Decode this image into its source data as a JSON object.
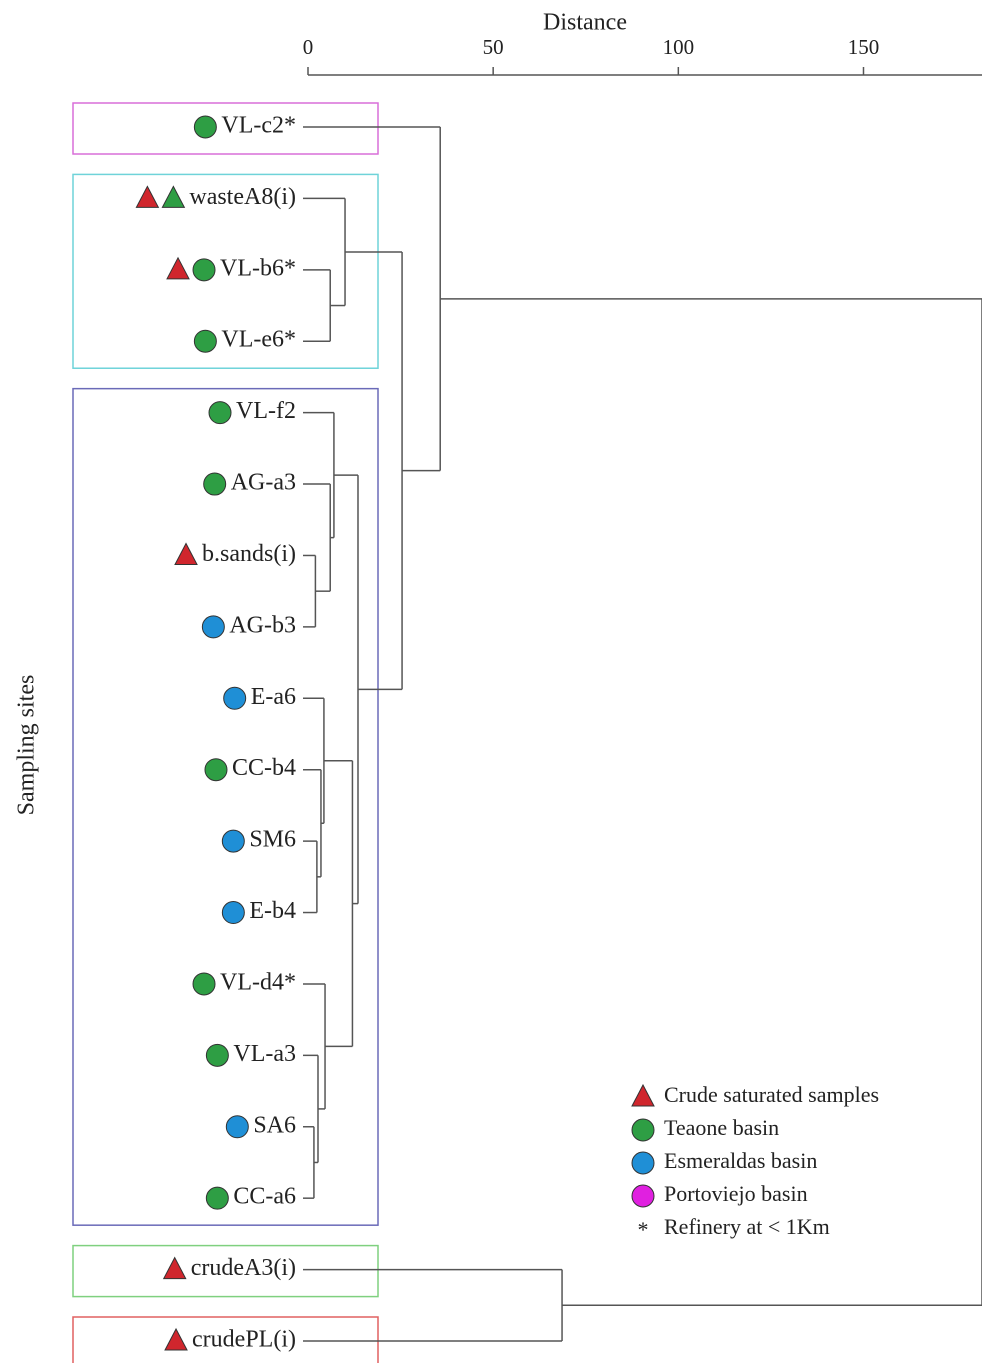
{
  "chart_data": {
    "type": "dendrogram",
    "title": "Distance",
    "y_label": "Sampling sites",
    "xlim": [
      0,
      182
    ],
    "xticks": [
      0,
      50,
      100,
      150
    ],
    "leaves": [
      {
        "label": "VL-c2*",
        "symbols": [
          {
            "shape": "circle",
            "color": "#2e9e44"
          }
        ]
      },
      {
        "label": "wasteA8(i)",
        "symbols": [
          {
            "shape": "triangle",
            "color": "#d0262d"
          },
          {
            "shape": "triangle",
            "color": "#2e9e44"
          }
        ]
      },
      {
        "label": "VL-b6*",
        "symbols": [
          {
            "shape": "triangle",
            "color": "#d0262d"
          },
          {
            "shape": "circle",
            "color": "#2e9e44"
          }
        ]
      },
      {
        "label": "VL-e6*",
        "symbols": [
          {
            "shape": "circle",
            "color": "#2e9e44"
          }
        ]
      },
      {
        "label": "VL-f2",
        "symbols": [
          {
            "shape": "circle",
            "color": "#2e9e44"
          }
        ]
      },
      {
        "label": "AG-a3",
        "symbols": [
          {
            "shape": "circle",
            "color": "#2e9e44"
          }
        ]
      },
      {
        "label": "b.sands(i)",
        "symbols": [
          {
            "shape": "triangle",
            "color": "#d0262d"
          }
        ]
      },
      {
        "label": "AG-b3",
        "symbols": [
          {
            "shape": "circle",
            "color": "#1f8fd6"
          }
        ]
      },
      {
        "label": "E-a6",
        "symbols": [
          {
            "shape": "circle",
            "color": "#1f8fd6"
          }
        ]
      },
      {
        "label": "CC-b4",
        "symbols": [
          {
            "shape": "circle",
            "color": "#2e9e44"
          }
        ]
      },
      {
        "label": "SM6",
        "symbols": [
          {
            "shape": "circle",
            "color": "#1f8fd6"
          }
        ]
      },
      {
        "label": "E-b4",
        "symbols": [
          {
            "shape": "circle",
            "color": "#1f8fd6"
          }
        ]
      },
      {
        "label": "VL-d4*",
        "symbols": [
          {
            "shape": "circle",
            "color": "#2e9e44"
          }
        ]
      },
      {
        "label": "VL-a3",
        "symbols": [
          {
            "shape": "circle",
            "color": "#2e9e44"
          }
        ]
      },
      {
        "label": "SA6",
        "symbols": [
          {
            "shape": "circle",
            "color": "#1f8fd6"
          }
        ]
      },
      {
        "label": "CC-a6",
        "symbols": [
          {
            "shape": "circle",
            "color": "#2e9e44"
          }
        ]
      },
      {
        "label": "crudeA3(i)",
        "symbols": [
          {
            "shape": "triangle",
            "color": "#d0262d"
          }
        ]
      },
      {
        "label": "crudePL(i)",
        "symbols": [
          {
            "shape": "triangle",
            "color": "#d0262d"
          }
        ]
      }
    ],
    "merges": [
      {
        "children": [
          2,
          3
        ],
        "height": 6
      },
      {
        "children": [
          1,
          18
        ],
        "height": 10
      },
      {
        "children": [
          6,
          7
        ],
        "height": 2
      },
      {
        "children": [
          5,
          20
        ],
        "height": 6
      },
      {
        "children": [
          4,
          21
        ],
        "height": 7
      },
      {
        "children": [
          10,
          11
        ],
        "height": 2.4
      },
      {
        "children": [
          9,
          23
        ],
        "height": 3.5
      },
      {
        "children": [
          8,
          24
        ],
        "height": 4.3
      },
      {
        "children": [
          14,
          15
        ],
        "height": 1.6
      },
      {
        "children": [
          13,
          26
        ],
        "height": 2.7
      },
      {
        "children": [
          12,
          27
        ],
        "height": 4.6
      },
      {
        "children": [
          25,
          28
        ],
        "height": 12
      },
      {
        "children": [
          22,
          29
        ],
        "height": 13.5
      },
      {
        "children": [
          19,
          30
        ],
        "height": 25.4
      },
      {
        "children": [
          0,
          31
        ],
        "height": 35.7
      },
      {
        "children": [
          16,
          17
        ],
        "height": 68.6
      },
      {
        "children": [
          32,
          33
        ],
        "height": 182
      }
    ],
    "groups": [
      {
        "from": 0,
        "to": 0,
        "color": "#d96fd9"
      },
      {
        "from": 1,
        "to": 3,
        "color": "#6fd3d9"
      },
      {
        "from": 4,
        "to": 15,
        "color": "#6a6ab8"
      },
      {
        "from": 16,
        "to": 16,
        "color": "#7fd07f"
      },
      {
        "from": 17,
        "to": 17,
        "color": "#e06060"
      }
    ],
    "legend": [
      {
        "label": "Crude saturated samples",
        "shape": "triangle",
        "color": "#d0262d"
      },
      {
        "label": "Teaone basin",
        "shape": "circle",
        "color": "#2e9e44"
      },
      {
        "label": "Esmeraldas basin",
        "shape": "circle",
        "color": "#1f8fd6"
      },
      {
        "label": "Portoviejo basin",
        "shape": "circle",
        "color": "#e020e0"
      },
      {
        "label": "Refinery at < 1Km",
        "shape": "text",
        "symbol": "*"
      }
    ]
  }
}
